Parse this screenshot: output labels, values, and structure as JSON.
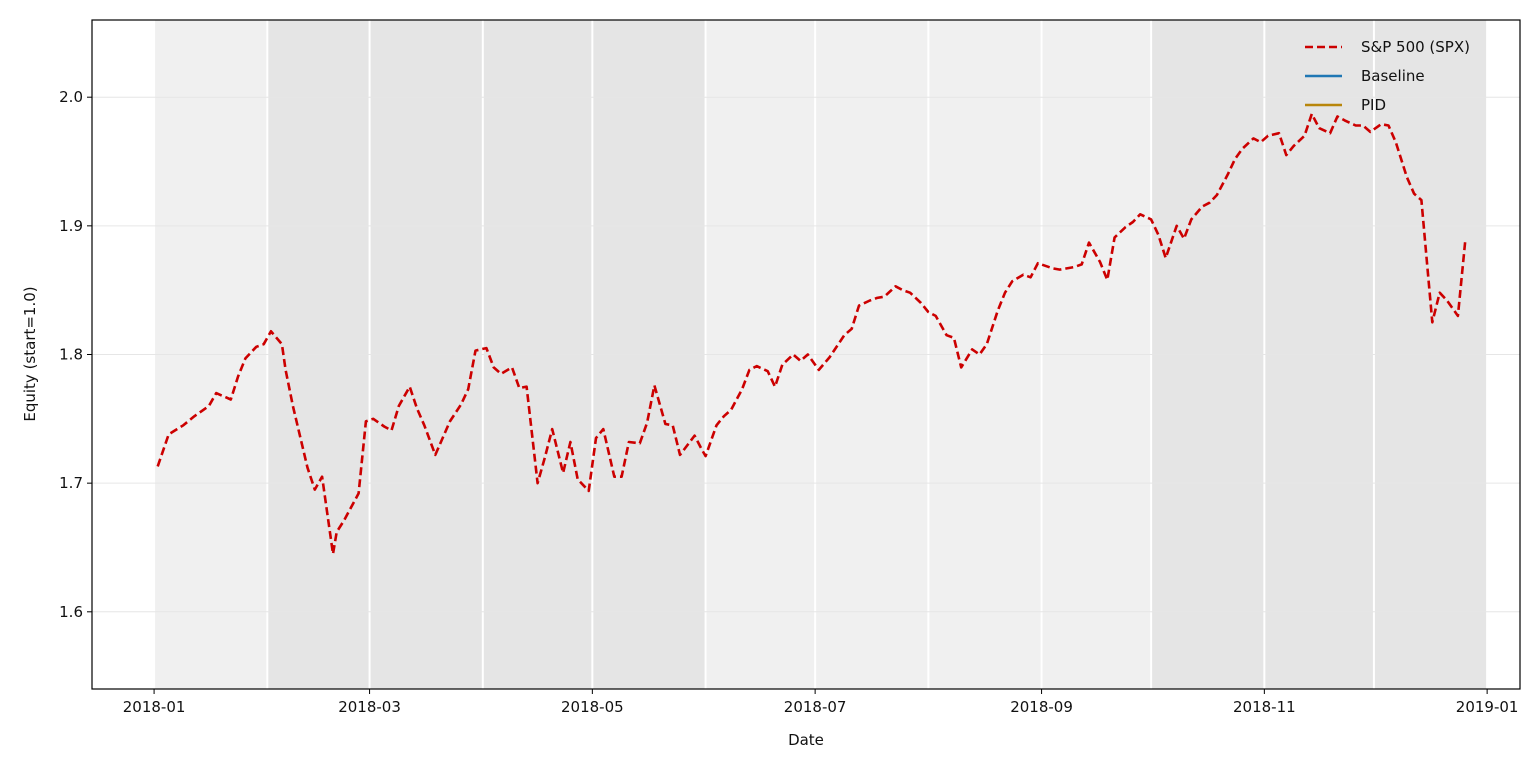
{
  "chart_data": {
    "type": "line",
    "title": "",
    "xlabel": "Date",
    "ylabel": "Equity (start=1.0)",
    "xlim": [
      "2017-12-15",
      "2019-01-10"
    ],
    "ylim": [
      1.54,
      2.06
    ],
    "x_ticks": [
      "2018-01",
      "2018-03",
      "2018-05",
      "2018-07",
      "2018-09",
      "2018-11",
      "2019-01"
    ],
    "x_tick_dates": [
      "2018-01-01",
      "2018-03-01",
      "2018-05-01",
      "2018-07-01",
      "2018-09-01",
      "2018-11-01",
      "2019-01-01"
    ],
    "y_ticks": [
      "1.6",
      "1.7",
      "1.8",
      "1.9",
      "2.0"
    ],
    "grid": "horizontal",
    "legend_position": "top-right",
    "month_bands": [
      {
        "start": "2018-01-01",
        "end": "2018-01-31",
        "shade": "light"
      },
      {
        "start": "2018-02-01",
        "end": "2018-02-28",
        "shade": "dark"
      },
      {
        "start": "2018-03-01",
        "end": "2018-03-31",
        "shade": "dark"
      },
      {
        "start": "2018-04-01",
        "end": "2018-04-30",
        "shade": "dark"
      },
      {
        "start": "2018-05-01",
        "end": "2018-05-31",
        "shade": "dark"
      },
      {
        "start": "2018-06-01",
        "end": "2018-06-30",
        "shade": "light"
      },
      {
        "start": "2018-07-01",
        "end": "2018-07-31",
        "shade": "light"
      },
      {
        "start": "2018-08-01",
        "end": "2018-08-31",
        "shade": "light"
      },
      {
        "start": "2018-09-01",
        "end": "2018-09-30",
        "shade": "light"
      },
      {
        "start": "2018-10-01",
        "end": "2018-10-31",
        "shade": "dark"
      },
      {
        "start": "2018-11-01",
        "end": "2018-11-30",
        "shade": "dark"
      },
      {
        "start": "2018-12-01",
        "end": "2018-12-31",
        "shade": "dark"
      }
    ],
    "colors": {
      "band_light": "#f0f0f0",
      "band_dark": "#e5e5e5",
      "grid": "#e6e6e6"
    },
    "series": [
      {
        "name": "S&P 500 (SPX)",
        "color": "#cc0000",
        "dash": "dashed",
        "points": [
          [
            "2018-01-02",
            1.713
          ],
          [
            "2018-01-05",
            1.738
          ],
          [
            "2018-01-09",
            1.745
          ],
          [
            "2018-01-12",
            1.752
          ],
          [
            "2018-01-16",
            1.76
          ],
          [
            "2018-01-18",
            1.77
          ],
          [
            "2018-01-22",
            1.765
          ],
          [
            "2018-01-24",
            1.783
          ],
          [
            "2018-01-26",
            1.797
          ],
          [
            "2018-01-29",
            1.806
          ],
          [
            "2018-01-31",
            1.808
          ],
          [
            "2018-02-02",
            1.818
          ],
          [
            "2018-02-05",
            1.808
          ],
          [
            "2018-02-06",
            1.788
          ],
          [
            "2018-02-08",
            1.76
          ],
          [
            "2018-02-12",
            1.712
          ],
          [
            "2018-02-14",
            1.695
          ],
          [
            "2018-02-16",
            1.705
          ],
          [
            "2018-02-19",
            1.645
          ],
          [
            "2018-02-20",
            1.662
          ],
          [
            "2018-02-22",
            1.671
          ],
          [
            "2018-02-26",
            1.692
          ],
          [
            "2018-02-28",
            1.748
          ],
          [
            "2018-03-02",
            1.75
          ],
          [
            "2018-03-05",
            1.744
          ],
          [
            "2018-03-07",
            1.741
          ],
          [
            "2018-03-09",
            1.76
          ],
          [
            "2018-03-12",
            1.775
          ],
          [
            "2018-03-14",
            1.758
          ],
          [
            "2018-03-16",
            1.745
          ],
          [
            "2018-03-19",
            1.722
          ],
          [
            "2018-03-21",
            1.735
          ],
          [
            "2018-03-23",
            1.748
          ],
          [
            "2018-03-26",
            1.761
          ],
          [
            "2018-03-28",
            1.773
          ],
          [
            "2018-03-30",
            1.803
          ],
          [
            "2018-04-02",
            1.805
          ],
          [
            "2018-04-04",
            1.79
          ],
          [
            "2018-04-06",
            1.785
          ],
          [
            "2018-04-09",
            1.79
          ],
          [
            "2018-04-11",
            1.774
          ],
          [
            "2018-04-13",
            1.775
          ],
          [
            "2018-04-16",
            1.7
          ],
          [
            "2018-04-18",
            1.72
          ],
          [
            "2018-04-20",
            1.742
          ],
          [
            "2018-04-23",
            1.708
          ],
          [
            "2018-04-25",
            1.732
          ],
          [
            "2018-04-27",
            1.703
          ],
          [
            "2018-04-30",
            1.694
          ],
          [
            "2018-05-02",
            1.735
          ],
          [
            "2018-05-04",
            1.742
          ],
          [
            "2018-05-07",
            1.705
          ],
          [
            "2018-05-09",
            1.705
          ],
          [
            "2018-05-11",
            1.732
          ],
          [
            "2018-05-14",
            1.731
          ],
          [
            "2018-05-16",
            1.747
          ],
          [
            "2018-05-18",
            1.776
          ],
          [
            "2018-05-21",
            1.746
          ],
          [
            "2018-05-23",
            1.745
          ],
          [
            "2018-05-25",
            1.722
          ],
          [
            "2018-05-29",
            1.737
          ],
          [
            "2018-05-31",
            1.726
          ],
          [
            "2018-06-01",
            1.721
          ],
          [
            "2018-06-04",
            1.745
          ],
          [
            "2018-06-06",
            1.752
          ],
          [
            "2018-06-08",
            1.757
          ],
          [
            "2018-06-11",
            1.773
          ],
          [
            "2018-06-13",
            1.788
          ],
          [
            "2018-06-15",
            1.791
          ],
          [
            "2018-06-18",
            1.787
          ],
          [
            "2018-06-20",
            1.775
          ],
          [
            "2018-06-22",
            1.792
          ],
          [
            "2018-06-25",
            1.8
          ],
          [
            "2018-06-27",
            1.795
          ],
          [
            "2018-06-29",
            1.8
          ],
          [
            "2018-07-02",
            1.788
          ],
          [
            "2018-07-05",
            1.798
          ],
          [
            "2018-07-09",
            1.815
          ],
          [
            "2018-07-11",
            1.82
          ],
          [
            "2018-07-13",
            1.838
          ],
          [
            "2018-07-16",
            1.842
          ],
          [
            "2018-07-18",
            1.844
          ],
          [
            "2018-07-20",
            1.845
          ],
          [
            "2018-07-23",
            1.853
          ],
          [
            "2018-07-25",
            1.85
          ],
          [
            "2018-07-27",
            1.848
          ],
          [
            "2018-07-30",
            1.84
          ],
          [
            "2018-08-01",
            1.833
          ],
          [
            "2018-08-03",
            1.83
          ],
          [
            "2018-08-06",
            1.815
          ],
          [
            "2018-08-08",
            1.813
          ],
          [
            "2018-08-10",
            1.79
          ],
          [
            "2018-08-13",
            1.804
          ],
          [
            "2018-08-15",
            1.8
          ],
          [
            "2018-08-17",
            1.808
          ],
          [
            "2018-08-20",
            1.834
          ],
          [
            "2018-08-22",
            1.848
          ],
          [
            "2018-08-24",
            1.857
          ],
          [
            "2018-08-27",
            1.862
          ],
          [
            "2018-08-29",
            1.86
          ],
          [
            "2018-08-31",
            1.871
          ],
          [
            "2018-09-04",
            1.867
          ],
          [
            "2018-09-06",
            1.866
          ],
          [
            "2018-09-10",
            1.868
          ],
          [
            "2018-09-12",
            1.87
          ],
          [
            "2018-09-14",
            1.887
          ],
          [
            "2018-09-17",
            1.872
          ],
          [
            "2018-09-19",
            1.858
          ],
          [
            "2018-09-21",
            1.891
          ],
          [
            "2018-09-24",
            1.899
          ],
          [
            "2018-09-26",
            1.903
          ],
          [
            "2018-09-28",
            1.909
          ],
          [
            "2018-10-01",
            1.905
          ],
          [
            "2018-10-03",
            1.893
          ],
          [
            "2018-10-05",
            1.875
          ],
          [
            "2018-10-08",
            1.9
          ],
          [
            "2018-10-10",
            1.89
          ],
          [
            "2018-10-12",
            1.905
          ],
          [
            "2018-10-15",
            1.915
          ],
          [
            "2018-10-17",
            1.918
          ],
          [
            "2018-10-19",
            1.924
          ],
          [
            "2018-10-22",
            1.94
          ],
          [
            "2018-10-24",
            1.952
          ],
          [
            "2018-10-26",
            1.96
          ],
          [
            "2018-10-29",
            1.968
          ],
          [
            "2018-10-31",
            1.965
          ],
          [
            "2018-11-02",
            1.97
          ],
          [
            "2018-11-05",
            1.972
          ],
          [
            "2018-11-07",
            1.955
          ],
          [
            "2018-11-09",
            1.962
          ],
          [
            "2018-11-12",
            1.97
          ],
          [
            "2018-11-14",
            1.987
          ],
          [
            "2018-11-16",
            1.976
          ],
          [
            "2018-11-19",
            1.972
          ],
          [
            "2018-11-21",
            1.985
          ],
          [
            "2018-11-23",
            1.982
          ],
          [
            "2018-11-26",
            1.978
          ],
          [
            "2018-11-28",
            1.978
          ],
          [
            "2018-11-30",
            1.973
          ],
          [
            "2018-12-03",
            1.979
          ],
          [
            "2018-12-05",
            1.978
          ],
          [
            "2018-12-07",
            1.965
          ],
          [
            "2018-12-10",
            1.938
          ],
          [
            "2018-12-12",
            1.925
          ],
          [
            "2018-12-14",
            1.92
          ],
          [
            "2018-12-17",
            1.825
          ],
          [
            "2018-12-19",
            1.848
          ],
          [
            "2018-12-21",
            1.842
          ],
          [
            "2018-12-24",
            1.83
          ],
          [
            "2018-12-26",
            1.888
          ]
        ]
      },
      {
        "name": "Baseline",
        "color": "#1f77b4",
        "dash": "solid",
        "points": []
      },
      {
        "name": "PID",
        "color": "#b8860b",
        "dash": "solid",
        "points": []
      }
    ]
  }
}
